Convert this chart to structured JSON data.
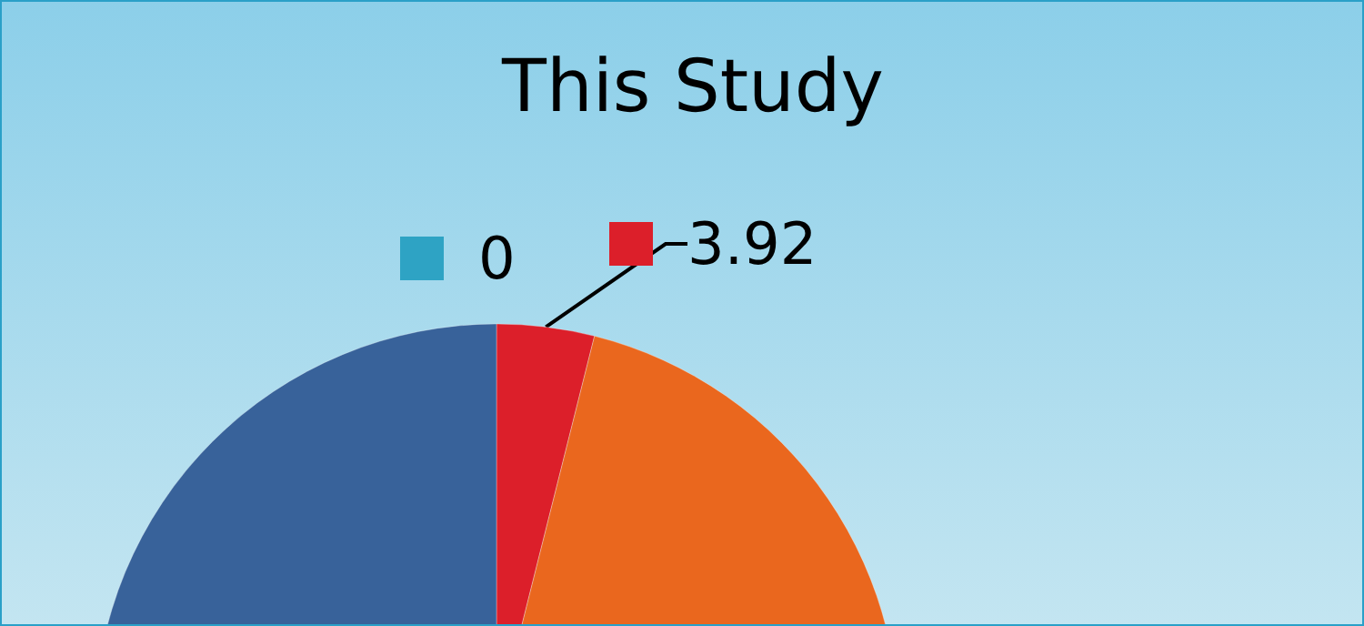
{
  "chart_data": {
    "type": "pie",
    "title": "This Study",
    "categories": [
      null,
      null,
      null,
      null
    ],
    "values": [
      0,
      3.92,
      46.08,
      50
    ],
    "colors": [
      "#2ea3c4",
      "#dc1f2a",
      "#ea671e",
      "#38629a"
    ],
    "value_labels": [
      "0",
      "3.92",
      null,
      null
    ]
  }
}
